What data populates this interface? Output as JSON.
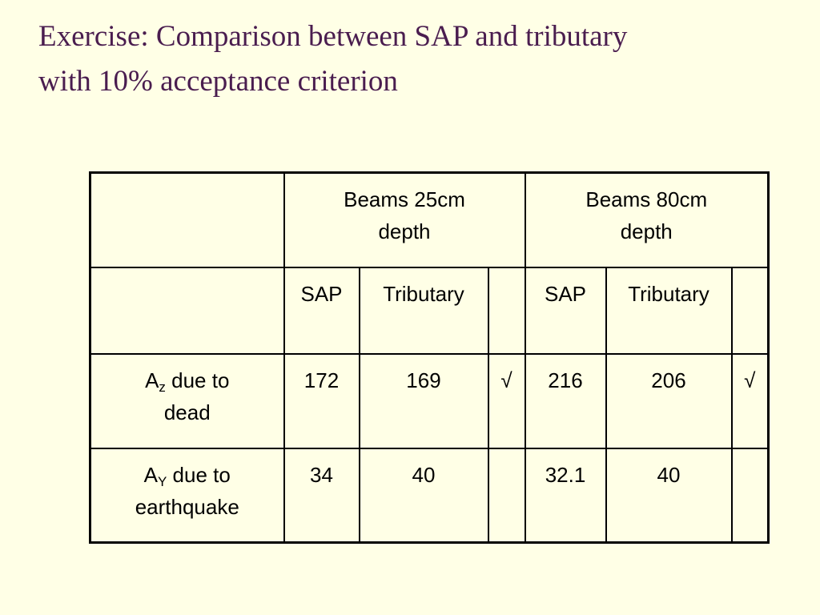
{
  "title": {
    "line1": "Exercise: Comparison between SAP and tributary",
    "line2": "with 10% acceptance criterion"
  },
  "table": {
    "groups": [
      {
        "line1": "Beams 25cm",
        "line2": "depth"
      },
      {
        "line1": "Beams 80cm",
        "line2": "depth"
      }
    ],
    "subheaders": [
      "SAP",
      "Tributary",
      "",
      "SAP",
      "Tributary",
      ""
    ],
    "rows": [
      {
        "label_main": "A",
        "label_sub": "z",
        "label_rest": " due to",
        "label_line2": "dead",
        "cells": [
          "172",
          "169",
          "√",
          "216",
          "206",
          "√"
        ]
      },
      {
        "label_main": "A",
        "label_sub": "Y",
        "label_rest": " due to",
        "label_line2": "earthquake",
        "cells": [
          "34",
          "40",
          "",
          "32.1",
          "40",
          ""
        ]
      }
    ]
  }
}
